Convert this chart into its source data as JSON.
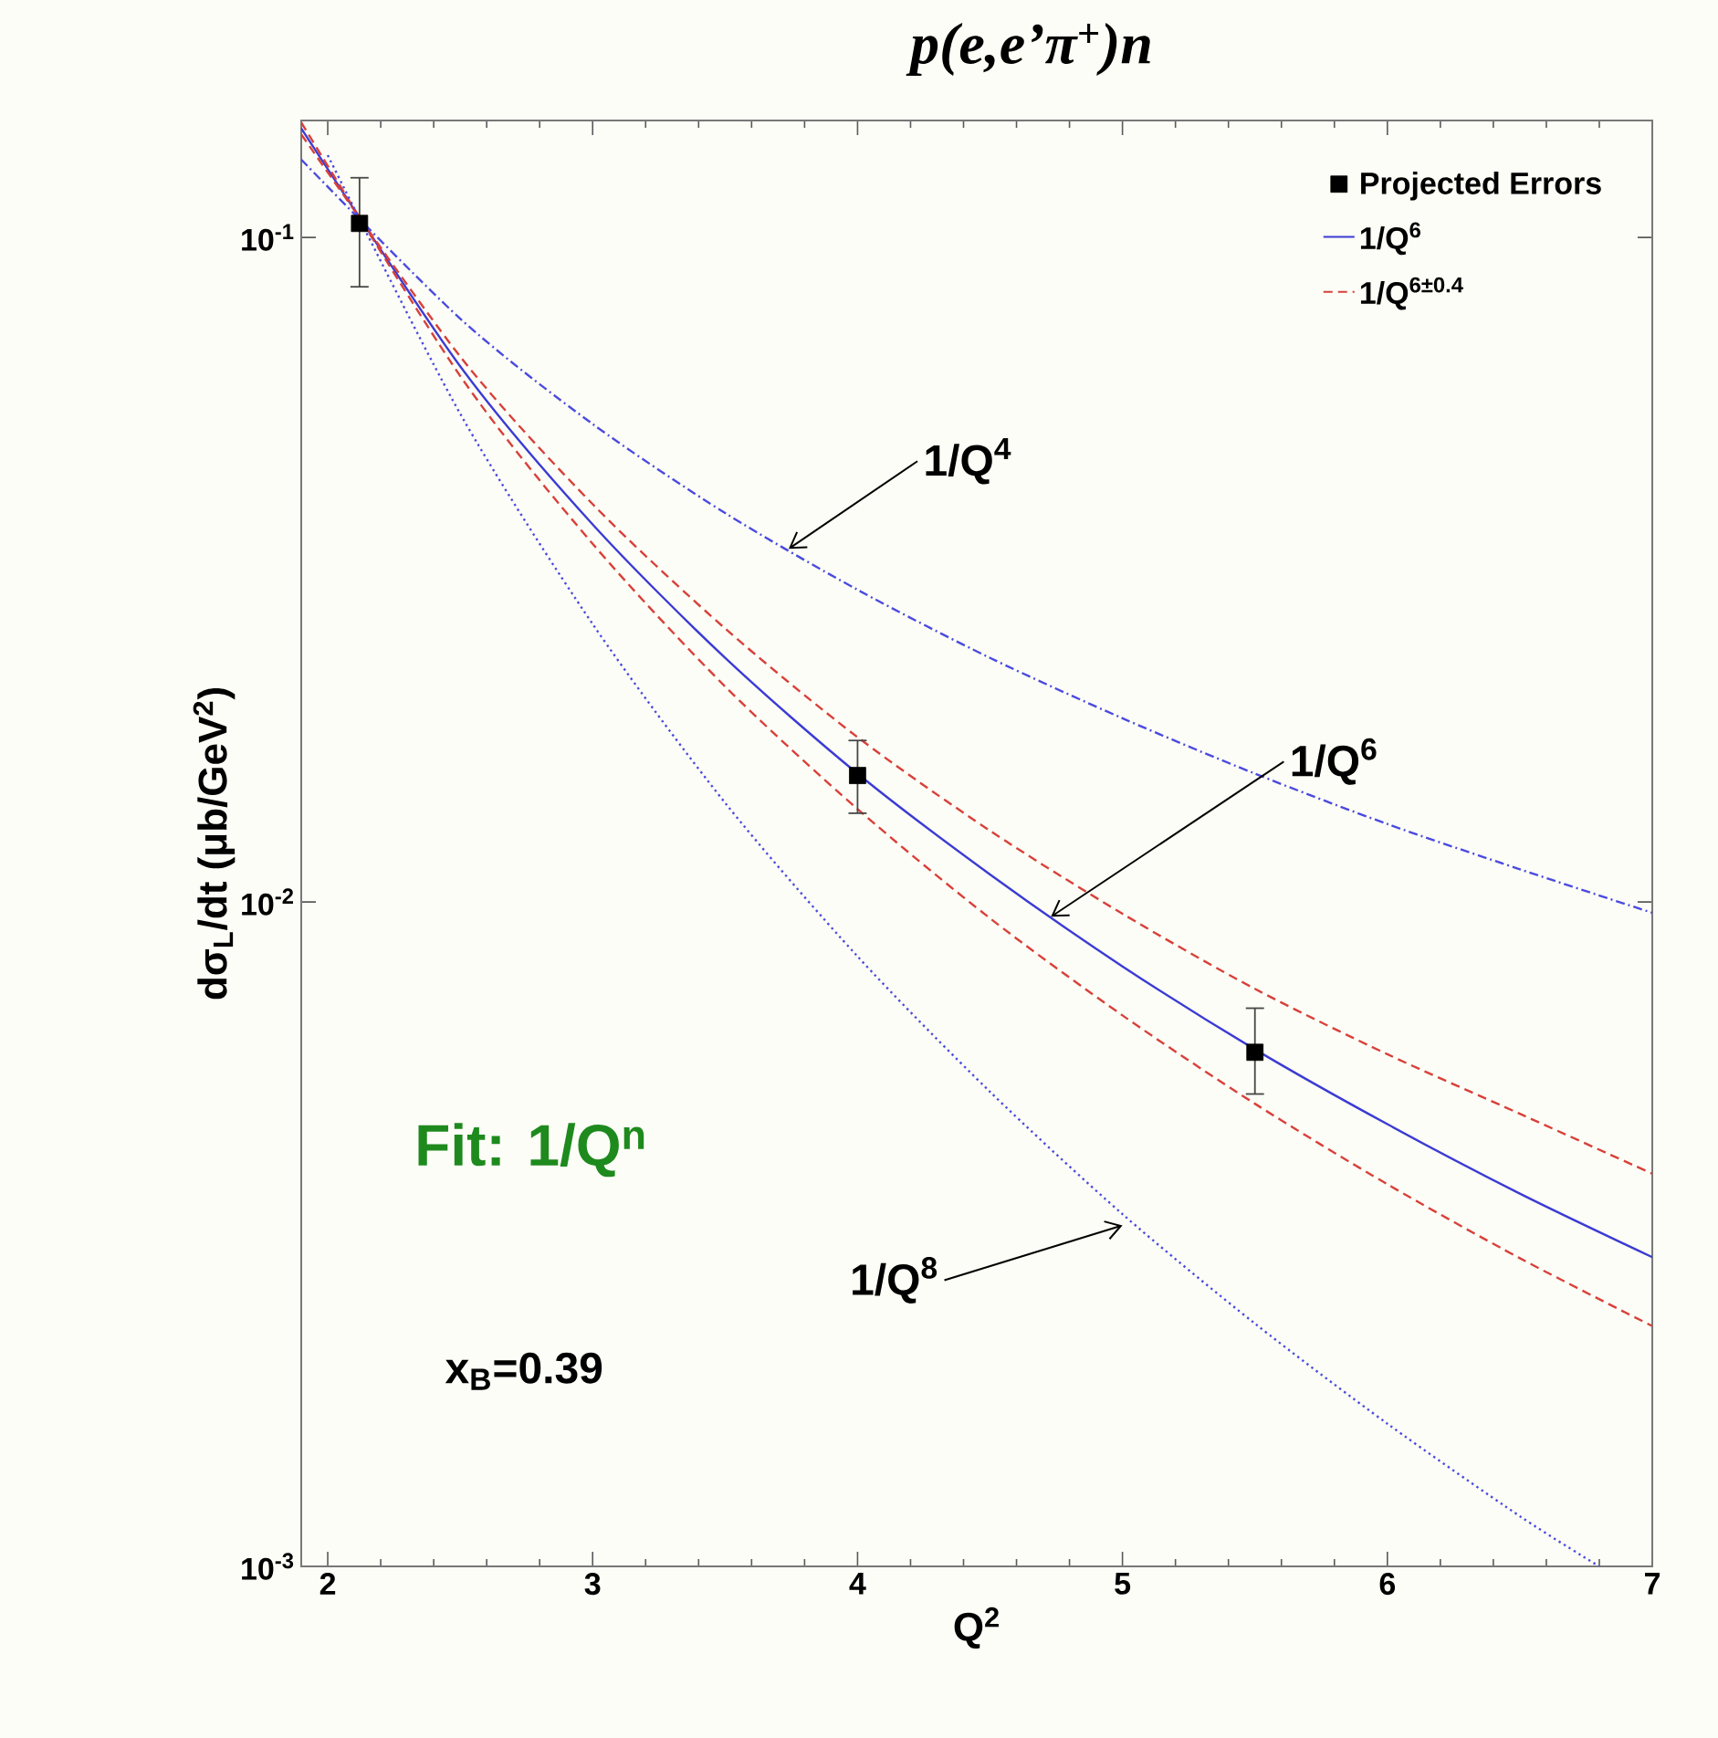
{
  "chart_data": {
    "type": "line",
    "title": "p(e,e’π$^{+}$)n",
    "xlabel": "Q$^{2}$",
    "ylabel": "dσ$_{L}$/dt (μb/GeV$^{2}$)",
    "xlim": [
      1.9,
      7
    ],
    "ylim": [
      0.001,
      0.15
    ],
    "log": "y",
    "legend": "top right",
    "xticks": [
      2,
      3,
      4,
      5,
      6,
      7
    ],
    "yticks": [
      {
        "value": 0.1,
        "label": "10$^{-1}$"
      },
      {
        "value": 0.01,
        "label": "10$^{-2}$"
      },
      {
        "value": 0.001,
        "label": "10$^{-3}$"
      }
    ],
    "series": [
      {
        "name": "Projected Errors",
        "type": "scatter",
        "marker": "square",
        "color": "#000000",
        "x": [
          2.12,
          4,
          5.5
        ],
        "values": [
          0.105,
          0.0155,
          0.00594
        ],
        "errors": [
          [
            0.0843,
            0.123
          ],
          [
            0.0136,
            0.0175
          ],
          [
            0.00514,
            0.00692
          ]
        ]
      },
      {
        "name": "1/Q$^{6}$",
        "color": "#3b3bd4",
        "line_style": "solid",
        "x": [
          1.9,
          2.5,
          3,
          3.5,
          4,
          4.5,
          5,
          5.5,
          6,
          6.5,
          7
        ],
        "values": [
          0.146,
          0.064,
          0.037,
          0.0233,
          0.0156,
          0.011,
          0.008,
          0.006,
          0.00463,
          0.00364,
          0.00292
        ]
      },
      {
        "name": "1/Q$^{6±0.4}$",
        "color": "#d8403a",
        "line_style": "dashed",
        "x": [
          1.9,
          2.5,
          3,
          3.5,
          4,
          4.5,
          5,
          5.5,
          6,
          6.5,
          7
        ],
        "values": [
          0.143,
          0.0662,
          0.0397,
          0.0258,
          0.0177,
          0.0128,
          0.0096,
          0.0074,
          0.0059,
          0.0048,
          0.0039
        ]
      },
      {
        "color": "#d8403a",
        "line_style": "dashed",
        "x": [
          1.9,
          2.5,
          3,
          3.5,
          4,
          4.5,
          5,
          5.5,
          6,
          6.5,
          7
        ],
        "values": [
          0.149,
          0.0619,
          0.0346,
          0.0211,
          0.0138,
          0.00945,
          0.00675,
          0.00497,
          0.00376,
          0.00291,
          0.0023
        ]
      },
      {
        "color": "#4a4ae0",
        "line_style": "dashdot",
        "x": [
          1.9,
          2.5,
          3,
          3.5,
          4,
          4.5,
          5,
          5.5,
          6,
          6.5,
          7
        ],
        "values": [
          0.131,
          0.0755,
          0.0524,
          0.0385,
          0.0295,
          0.0233,
          0.0189,
          0.0156,
          0.0131,
          0.0112,
          0.00963
        ]
      },
      {
        "color": "#4a4ae0",
        "line_style": "dotted",
        "x": [
          2.0,
          2.5,
          3,
          3.5,
          4,
          4.5,
          5,
          5.5,
          6,
          6.5,
          6.8
        ],
        "values": [
          0.133,
          0.0543,
          0.0262,
          0.0141,
          0.00828,
          0.00518,
          0.00339,
          0.00232,
          0.00164,
          0.00119,
          0.001
        ]
      }
    ],
    "annotations": [
      {
        "text": "1/Q$^{4}$",
        "x": 3.74,
        "y": 0.034
      },
      {
        "text": "1/Q$^{6}$",
        "x": 4.73,
        "y": 0.0095
      },
      {
        "text": "1/Q$^{8}$",
        "x": 5.0,
        "y": 0.00326
      },
      "Fit: 1/Q$^{n}$",
      "x$_{B}$=0.39"
    ]
  }
}
